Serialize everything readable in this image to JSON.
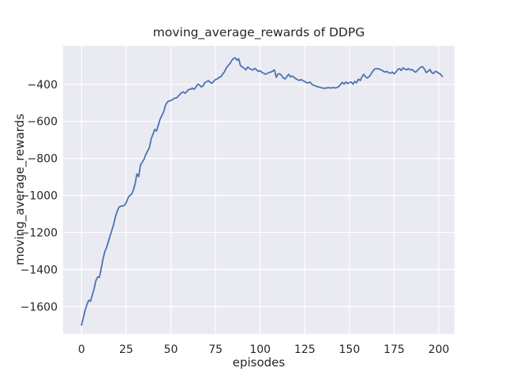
{
  "figure": {
    "background": "#ffffff",
    "axes_background": "#eaeaf2",
    "grid_color": "#ffffff",
    "text_color": "#262626"
  },
  "chart_data": {
    "type": "line",
    "title": "moving_average_rewards of DDPG",
    "xlabel": "episodes",
    "ylabel": "moving_average_rewards",
    "grid": true,
    "legend": "none",
    "xlim": [
      -10.3,
      208.8
    ],
    "ylim": [
      -1748,
      -192
    ],
    "xticks": [
      0,
      25,
      50,
      75,
      100,
      125,
      150,
      175,
      200
    ],
    "yticks": [
      -1600,
      -1400,
      -1200,
      -1000,
      -800,
      -600,
      -400
    ],
    "series": [
      {
        "name": "moving_average_rewards of DDPG",
        "color": "#4c72b0",
        "line_width": 1.8,
        "x": [
          0,
          1,
          2,
          3,
          4,
          5,
          6,
          7,
          8,
          9,
          10,
          11,
          12,
          13,
          14,
          15,
          16,
          17,
          18,
          19,
          20,
          21,
          22,
          23,
          24,
          25,
          26,
          27,
          28,
          29,
          30,
          31,
          32,
          33,
          34,
          35,
          36,
          37,
          38,
          39,
          40,
          41,
          42,
          43,
          44,
          45,
          46,
          47,
          48,
          49,
          50,
          51,
          52,
          53,
          54,
          55,
          56,
          57,
          58,
          59,
          60,
          61,
          62,
          63,
          64,
          65,
          66,
          67,
          68,
          69,
          70,
          71,
          72,
          73,
          74,
          75,
          76,
          77,
          78,
          79,
          80,
          81,
          82,
          83,
          84,
          85,
          86,
          87,
          88,
          89,
          90,
          91,
          92,
          93,
          94,
          95,
          96,
          97,
          98,
          99,
          100,
          101,
          102,
          103,
          104,
          105,
          106,
          107,
          108,
          109,
          110,
          111,
          112,
          113,
          114,
          115,
          116,
          117,
          118,
          119,
          120,
          121,
          122,
          123,
          124,
          125,
          126,
          127,
          128,
          129,
          130,
          131,
          132,
          133,
          134,
          135,
          136,
          137,
          138,
          139,
          140,
          141,
          142,
          143,
          144,
          145,
          146,
          147,
          148,
          149,
          150,
          151,
          152,
          153,
          154,
          155,
          156,
          157,
          158,
          159,
          160,
          161,
          162,
          163,
          164,
          165,
          166,
          167,
          168,
          169,
          170,
          171,
          172,
          173,
          174,
          175,
          176,
          177,
          178,
          179,
          180,
          181,
          182,
          183,
          184,
          185,
          186,
          187,
          188,
          189,
          190,
          191,
          192,
          193,
          194,
          195,
          196,
          197,
          198,
          199,
          200,
          201,
          202
        ],
        "y": [
          -1700,
          -1660,
          -1622,
          -1590,
          -1566,
          -1572,
          -1539,
          -1505,
          -1462,
          -1440,
          -1442,
          -1395,
          -1345,
          -1305,
          -1282,
          -1250,
          -1218,
          -1187,
          -1155,
          -1115,
          -1085,
          -1063,
          -1058,
          -1057,
          -1053,
          -1040,
          -1014,
          -1000,
          -994,
          -972,
          -938,
          -884,
          -898,
          -836,
          -820,
          -804,
          -778,
          -760,
          -742,
          -694,
          -670,
          -643,
          -652,
          -620,
          -588,
          -568,
          -548,
          -513,
          -496,
          -490,
          -488,
          -482,
          -475,
          -474,
          -466,
          -455,
          -445,
          -441,
          -448,
          -439,
          -428,
          -427,
          -420,
          -427,
          -416,
          -400,
          -403,
          -414,
          -410,
          -391,
          -386,
          -380,
          -389,
          -394,
          -384,
          -374,
          -371,
          -362,
          -360,
          -345,
          -333,
          -313,
          -300,
          -289,
          -273,
          -261,
          -257,
          -270,
          -262,
          -300,
          -306,
          -313,
          -322,
          -307,
          -314,
          -320,
          -323,
          -314,
          -322,
          -330,
          -327,
          -336,
          -340,
          -346,
          -341,
          -336,
          -334,
          -329,
          -322,
          -362,
          -345,
          -343,
          -352,
          -366,
          -371,
          -357,
          -346,
          -360,
          -355,
          -362,
          -370,
          -375,
          -379,
          -374,
          -381,
          -385,
          -391,
          -392,
          -388,
          -400,
          -405,
          -408,
          -413,
          -415,
          -418,
          -420,
          -421,
          -421,
          -417,
          -420,
          -419,
          -418,
          -420,
          -417,
          -413,
          -400,
          -389,
          -399,
          -387,
          -396,
          -390,
          -388,
          -399,
          -384,
          -392,
          -372,
          -380,
          -360,
          -346,
          -360,
          -366,
          -358,
          -345,
          -330,
          -318,
          -316,
          -315,
          -320,
          -323,
          -330,
          -334,
          -330,
          -338,
          -340,
          -334,
          -343,
          -335,
          -320,
          -315,
          -325,
          -311,
          -318,
          -322,
          -315,
          -323,
          -320,
          -328,
          -335,
          -325,
          -315,
          -307,
          -305,
          -318,
          -336,
          -330,
          -320,
          -336,
          -342,
          -330,
          -333,
          -340,
          -345,
          -358
        ]
      }
    ]
  }
}
